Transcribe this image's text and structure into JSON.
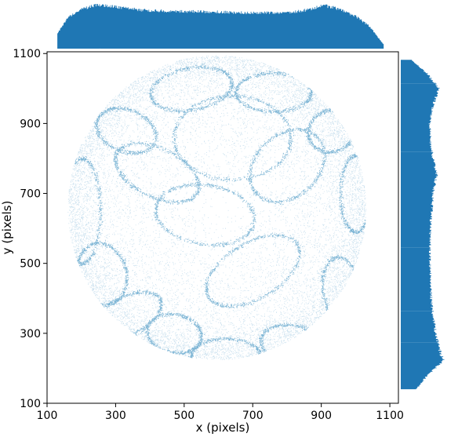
{
  "chart_data": {
    "type": "scatter",
    "subtype": "scatter with marginal histograms (joint plot)",
    "xlabel": "x (pixels)",
    "ylabel": "y (pixels)",
    "xlim": [
      100,
      1125
    ],
    "ylim": [
      100,
      1105
    ],
    "x_ticks": [
      100,
      300,
      500,
      700,
      900,
      1100
    ],
    "y_ticks": [
      100,
      300,
      500,
      700,
      900,
      1100
    ],
    "tick_labels_x": [
      "100",
      "300",
      "500",
      "700",
      "900",
      "1100"
    ],
    "tick_labels_y": [
      "100",
      "300",
      "500",
      "700",
      "900",
      "1100"
    ],
    "grid": false,
    "point_color": "#0a74b0",
    "histogram_color": "#1f77b4",
    "circle_region": {
      "center": [
        595,
        660
      ],
      "radius": 435
    },
    "trajectory_loops": [
      {
        "cx": 560,
        "cy": 640,
        "rx": 145,
        "ry": 85,
        "rot": -8
      },
      {
        "cx": 330,
        "cy": 350,
        "rx": 110,
        "ry": 55,
        "rot": 25
      },
      {
        "cx": 470,
        "cy": 300,
        "rx": 80,
        "ry": 55,
        "rot": -10
      },
      {
        "cx": 620,
        "cy": 240,
        "rx": 100,
        "ry": 45,
        "rot": 0
      },
      {
        "cx": 830,
        "cy": 260,
        "rx": 110,
        "ry": 60,
        "rot": -15
      },
      {
        "cx": 960,
        "cy": 420,
        "rx": 55,
        "ry": 100,
        "rot": 10
      },
      {
        "cx": 1000,
        "cy": 700,
        "rx": 45,
        "ry": 110,
        "rot": 0
      },
      {
        "cx": 930,
        "cy": 880,
        "rx": 70,
        "ry": 60,
        "rot": 20
      },
      {
        "cx": 760,
        "cy": 990,
        "rx": 110,
        "ry": 55,
        "rot": 0
      },
      {
        "cx": 520,
        "cy": 1000,
        "rx": 120,
        "ry": 60,
        "rot": 10
      },
      {
        "cx": 330,
        "cy": 880,
        "rx": 90,
        "ry": 60,
        "rot": -20
      },
      {
        "cx": 200,
        "cy": 650,
        "rx": 55,
        "ry": 150,
        "rot": 0
      },
      {
        "cx": 260,
        "cy": 470,
        "rx": 70,
        "ry": 90,
        "rot": 15
      },
      {
        "cx": 700,
        "cy": 480,
        "rx": 150,
        "ry": 80,
        "rot": 30
      },
      {
        "cx": 420,
        "cy": 760,
        "rx": 130,
        "ry": 70,
        "rot": -25
      },
      {
        "cx": 800,
        "cy": 780,
        "rx": 120,
        "ry": 90,
        "rot": 40
      },
      {
        "cx": 640,
        "cy": 860,
        "rx": 170,
        "ry": 120,
        "rot": 0
      }
    ],
    "marginal_x_histogram_profile": {
      "x": [
        130,
        160,
        200,
        240,
        280,
        330,
        380,
        450,
        520,
        600,
        680,
        760,
        820,
        870,
        900,
        930,
        960,
        1000,
        1040,
        1080
      ],
      "level": [
        0.35,
        0.7,
        0.88,
        0.98,
        0.95,
        0.9,
        0.86,
        0.84,
        0.83,
        0.82,
        0.8,
        0.8,
        0.82,
        0.88,
        0.97,
        0.93,
        0.85,
        0.72,
        0.5,
        0.1
      ]
    },
    "marginal_y_histogram_profile": {
      "y": [
        140,
        180,
        220,
        260,
        300,
        350,
        400,
        500,
        600,
        700,
        750,
        800,
        850,
        900,
        950,
        1000,
        1040,
        1080
      ],
      "level": [
        0.35,
        0.6,
        0.95,
        0.85,
        0.78,
        0.72,
        0.68,
        0.65,
        0.66,
        0.72,
        0.8,
        0.72,
        0.66,
        0.65,
        0.72,
        0.85,
        0.6,
        0.25
      ]
    }
  }
}
